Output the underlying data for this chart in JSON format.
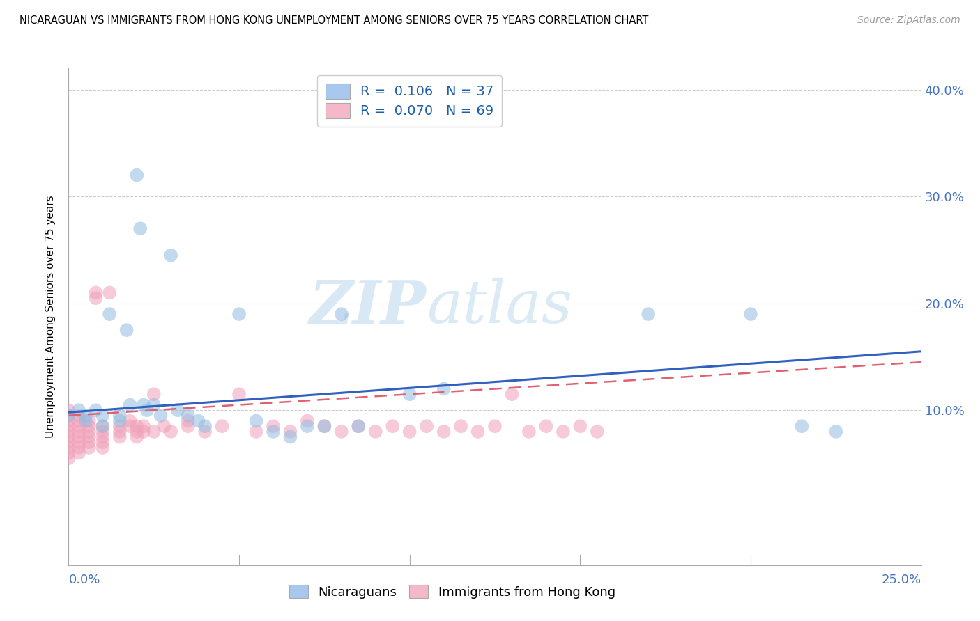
{
  "title": "NICARAGUAN VS IMMIGRANTS FROM HONG KONG UNEMPLOYMENT AMONG SENIORS OVER 75 YEARS CORRELATION CHART",
  "source": "Source: ZipAtlas.com",
  "ylabel": "Unemployment Among Seniors over 75 years",
  "xlim": [
    0.0,
    0.25
  ],
  "ylim": [
    -0.045,
    0.42
  ],
  "watermark_zip": "ZIP",
  "watermark_atlas": "atlas",
  "blue_scatter_color": "#92bce0",
  "pink_scatter_color": "#f0a0b8",
  "blue_line_color": "#3060c0",
  "pink_line_color": "#e06070",
  "grid_color": "#cccccc",
  "tick_color": "#4472c4",
  "nicaraguan_points": [
    [
      0.0,
      0.095
    ],
    [
      0.003,
      0.1
    ],
    [
      0.005,
      0.09
    ],
    [
      0.005,
      0.095
    ],
    [
      0.008,
      0.1
    ],
    [
      0.01,
      0.085
    ],
    [
      0.01,
      0.095
    ],
    [
      0.012,
      0.19
    ],
    [
      0.015,
      0.095
    ],
    [
      0.015,
      0.09
    ],
    [
      0.017,
      0.175
    ],
    [
      0.018,
      0.105
    ],
    [
      0.02,
      0.32
    ],
    [
      0.021,
      0.27
    ],
    [
      0.022,
      0.105
    ],
    [
      0.023,
      0.1
    ],
    [
      0.025,
      0.105
    ],
    [
      0.027,
      0.095
    ],
    [
      0.03,
      0.245
    ],
    [
      0.032,
      0.1
    ],
    [
      0.035,
      0.095
    ],
    [
      0.038,
      0.09
    ],
    [
      0.04,
      0.085
    ],
    [
      0.05,
      0.19
    ],
    [
      0.055,
      0.09
    ],
    [
      0.06,
      0.08
    ],
    [
      0.065,
      0.075
    ],
    [
      0.07,
      0.085
    ],
    [
      0.075,
      0.085
    ],
    [
      0.08,
      0.19
    ],
    [
      0.085,
      0.085
    ],
    [
      0.1,
      0.115
    ],
    [
      0.11,
      0.12
    ],
    [
      0.17,
      0.19
    ],
    [
      0.2,
      0.19
    ],
    [
      0.215,
      0.085
    ],
    [
      0.225,
      0.08
    ]
  ],
  "hk_points": [
    [
      0.0,
      0.1
    ],
    [
      0.0,
      0.095
    ],
    [
      0.0,
      0.09
    ],
    [
      0.0,
      0.085
    ],
    [
      0.0,
      0.08
    ],
    [
      0.0,
      0.075
    ],
    [
      0.0,
      0.07
    ],
    [
      0.0,
      0.065
    ],
    [
      0.0,
      0.06
    ],
    [
      0.0,
      0.055
    ],
    [
      0.003,
      0.095
    ],
    [
      0.003,
      0.09
    ],
    [
      0.003,
      0.085
    ],
    [
      0.003,
      0.08
    ],
    [
      0.003,
      0.075
    ],
    [
      0.003,
      0.07
    ],
    [
      0.003,
      0.065
    ],
    [
      0.003,
      0.06
    ],
    [
      0.006,
      0.09
    ],
    [
      0.006,
      0.085
    ],
    [
      0.006,
      0.08
    ],
    [
      0.006,
      0.075
    ],
    [
      0.006,
      0.07
    ],
    [
      0.006,
      0.065
    ],
    [
      0.008,
      0.21
    ],
    [
      0.008,
      0.205
    ],
    [
      0.01,
      0.085
    ],
    [
      0.01,
      0.08
    ],
    [
      0.01,
      0.075
    ],
    [
      0.01,
      0.07
    ],
    [
      0.01,
      0.065
    ],
    [
      0.012,
      0.21
    ],
    [
      0.015,
      0.085
    ],
    [
      0.015,
      0.08
    ],
    [
      0.015,
      0.075
    ],
    [
      0.018,
      0.09
    ],
    [
      0.018,
      0.085
    ],
    [
      0.02,
      0.085
    ],
    [
      0.02,
      0.08
    ],
    [
      0.02,
      0.075
    ],
    [
      0.022,
      0.085
    ],
    [
      0.022,
      0.08
    ],
    [
      0.025,
      0.115
    ],
    [
      0.025,
      0.08
    ],
    [
      0.028,
      0.085
    ],
    [
      0.03,
      0.08
    ],
    [
      0.035,
      0.09
    ],
    [
      0.035,
      0.085
    ],
    [
      0.04,
      0.08
    ],
    [
      0.045,
      0.085
    ],
    [
      0.05,
      0.115
    ],
    [
      0.055,
      0.08
    ],
    [
      0.06,
      0.085
    ],
    [
      0.065,
      0.08
    ],
    [
      0.07,
      0.09
    ],
    [
      0.075,
      0.085
    ],
    [
      0.08,
      0.08
    ],
    [
      0.085,
      0.085
    ],
    [
      0.09,
      0.08
    ],
    [
      0.095,
      0.085
    ],
    [
      0.1,
      0.08
    ],
    [
      0.105,
      0.085
    ],
    [
      0.11,
      0.08
    ],
    [
      0.115,
      0.085
    ],
    [
      0.12,
      0.08
    ],
    [
      0.125,
      0.085
    ],
    [
      0.13,
      0.115
    ],
    [
      0.135,
      0.08
    ],
    [
      0.14,
      0.085
    ],
    [
      0.145,
      0.08
    ],
    [
      0.15,
      0.085
    ],
    [
      0.155,
      0.08
    ]
  ],
  "nic_trend": [
    0.098,
    0.155
  ],
  "hk_trend": [
    0.095,
    0.145
  ]
}
